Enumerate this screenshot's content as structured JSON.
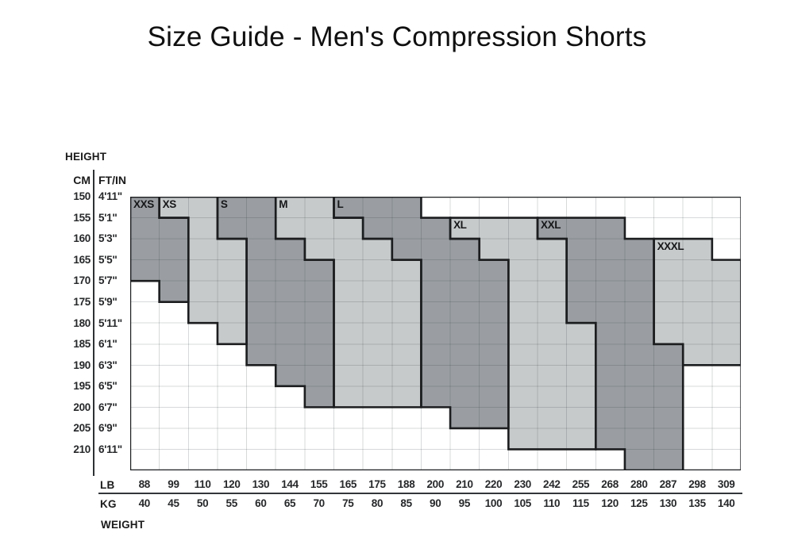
{
  "title": "Size Guide - Men's Compression Shorts",
  "axes": {
    "height_label": "HEIGHT",
    "weight_label": "WEIGHT",
    "cm_header": "CM",
    "ftin_header": "FT/IN",
    "lb_label": "LB",
    "kg_label": "KG"
  },
  "colors": {
    "fill_dark": "#9a9ea2",
    "fill_light": "#c7cacb",
    "region_border": "#1b1d1f",
    "gridline": "rgba(35,42,48,0.18)",
    "outer_border": "#1b1d1f",
    "background": "#ffffff"
  },
  "chart_data": {
    "type": "heatmap",
    "title": "Size Guide - Men's Compression Shorts",
    "xlabel": "WEIGHT",
    "ylabel": "HEIGHT",
    "x_ticks_lb": [
      88,
      99,
      110,
      120,
      130,
      144,
      155,
      165,
      175,
      188,
      200,
      210,
      220,
      230,
      242,
      255,
      268,
      280,
      287,
      298,
      309
    ],
    "x_ticks_kg": [
      40,
      45,
      50,
      55,
      60,
      65,
      70,
      75,
      80,
      85,
      90,
      95,
      100,
      105,
      110,
      115,
      120,
      125,
      130,
      135,
      140
    ],
    "y_ticks_cm": [
      150,
      155,
      160,
      165,
      170,
      175,
      180,
      185,
      190,
      195,
      200,
      205,
      210
    ],
    "y_ticks_ftin": [
      "4'11\"",
      "5'1\"",
      "5'3\"",
      "5'5\"",
      "5'7\"",
      "5'9\"",
      "5'11\"",
      "6'1\"",
      "6'3\"",
      "6'5\"",
      "6'7\"",
      "6'9\"",
      "6'11\""
    ],
    "grid": {
      "cols": 21,
      "rows": 13
    },
    "legend_position": "in-chart-labels",
    "sizes": [
      {
        "label": "XXS",
        "shade": "dark",
        "label_cell": [
          0,
          0
        ],
        "row_spans": {
          "0": [
            0,
            0
          ],
          "1": [
            0,
            1
          ],
          "2": [
            0,
            1
          ],
          "3": [
            0,
            1
          ],
          "4": [
            1,
            1
          ]
        },
        "polygon": [
          [
            0,
            0
          ],
          [
            1,
            0
          ],
          [
            1,
            1
          ],
          [
            2,
            1
          ],
          [
            2,
            5
          ],
          [
            1,
            5
          ],
          [
            1,
            4
          ],
          [
            0,
            4
          ]
        ]
      },
      {
        "label": "XS",
        "shade": "light",
        "label_cell": [
          1,
          0
        ],
        "row_spans": {
          "0": [
            1,
            2
          ],
          "1": [
            2,
            2
          ],
          "2": [
            2,
            3
          ],
          "3": [
            2,
            3
          ],
          "4": [
            2,
            3
          ],
          "5": [
            2,
            3
          ],
          "6": [
            3,
            3
          ]
        },
        "polygon": [
          [
            1,
            0
          ],
          [
            3,
            0
          ],
          [
            3,
            2
          ],
          [
            4,
            2
          ],
          [
            4,
            7
          ],
          [
            3,
            7
          ],
          [
            3,
            6
          ],
          [
            2,
            6
          ],
          [
            2,
            1
          ],
          [
            1,
            1
          ]
        ]
      },
      {
        "label": "S",
        "shade": "dark",
        "label_cell": [
          3,
          0
        ],
        "row_spans": {
          "0": [
            3,
            4
          ],
          "1": [
            3,
            4
          ],
          "2": [
            4,
            5
          ],
          "3": [
            4,
            6
          ],
          "4": [
            4,
            6
          ],
          "5": [
            4,
            6
          ],
          "6": [
            4,
            6
          ],
          "7": [
            4,
            6
          ],
          "8": [
            5,
            6
          ],
          "9": [
            6,
            6
          ]
        },
        "polygon": [
          [
            3,
            0
          ],
          [
            5,
            0
          ],
          [
            5,
            2
          ],
          [
            6,
            2
          ],
          [
            6,
            3
          ],
          [
            7,
            3
          ],
          [
            7,
            10
          ],
          [
            6,
            10
          ],
          [
            6,
            9
          ],
          [
            5,
            9
          ],
          [
            5,
            8
          ],
          [
            4,
            8
          ],
          [
            4,
            2
          ],
          [
            3,
            2
          ]
        ]
      },
      {
        "label": "M",
        "shade": "light",
        "label_cell": [
          5,
          0
        ],
        "row_spans": {
          "0": [
            5,
            6
          ],
          "1": [
            5,
            7
          ],
          "2": [
            6,
            8
          ],
          "3": [
            7,
            9
          ],
          "4": [
            7,
            9
          ],
          "5": [
            7,
            9
          ],
          "6": [
            7,
            9
          ],
          "7": [
            7,
            9
          ],
          "8": [
            7,
            9
          ],
          "9": [
            7,
            9
          ]
        },
        "polygon": [
          [
            5,
            0
          ],
          [
            7,
            0
          ],
          [
            7,
            1
          ],
          [
            8,
            1
          ],
          [
            8,
            2
          ],
          [
            9,
            2
          ],
          [
            9,
            3
          ],
          [
            10,
            3
          ],
          [
            10,
            10
          ],
          [
            7,
            10
          ],
          [
            7,
            3
          ],
          [
            6,
            3
          ],
          [
            6,
            2
          ],
          [
            5,
            2
          ]
        ]
      },
      {
        "label": "L",
        "shade": "dark",
        "label_cell": [
          7,
          0
        ],
        "row_spans": {
          "0": [
            7,
            9
          ],
          "1": [
            8,
            10
          ],
          "2": [
            9,
            11
          ],
          "3": [
            10,
            12
          ],
          "4": [
            10,
            12
          ],
          "5": [
            10,
            12
          ],
          "6": [
            10,
            12
          ],
          "7": [
            10,
            12
          ],
          "8": [
            10,
            12
          ],
          "9": [
            10,
            12
          ],
          "10": [
            11,
            12
          ]
        },
        "polygon": [
          [
            7,
            0
          ],
          [
            10,
            0
          ],
          [
            10,
            1
          ],
          [
            11,
            1
          ],
          [
            11,
            2
          ],
          [
            12,
            2
          ],
          [
            12,
            3
          ],
          [
            13,
            3
          ],
          [
            13,
            11
          ],
          [
            11,
            11
          ],
          [
            11,
            10
          ],
          [
            10,
            10
          ],
          [
            10,
            3
          ],
          [
            9,
            3
          ],
          [
            9,
            2
          ],
          [
            8,
            2
          ],
          [
            8,
            1
          ],
          [
            7,
            1
          ]
        ]
      },
      {
        "label": "XL",
        "shade": "light",
        "label_cell": [
          11,
          1
        ],
        "row_spans": {
          "1": [
            11,
            13
          ],
          "2": [
            12,
            14
          ],
          "3": [
            13,
            14
          ],
          "4": [
            13,
            14
          ],
          "5": [
            13,
            14
          ],
          "6": [
            13,
            15
          ],
          "7": [
            13,
            15
          ],
          "8": [
            13,
            15
          ],
          "9": [
            13,
            15
          ],
          "10": [
            13,
            15
          ],
          "11": [
            13,
            15
          ]
        },
        "polygon": [
          [
            11,
            1
          ],
          [
            14,
            1
          ],
          [
            14,
            2
          ],
          [
            15,
            2
          ],
          [
            15,
            6
          ],
          [
            16,
            6
          ],
          [
            16,
            12
          ],
          [
            13,
            12
          ],
          [
            13,
            3
          ],
          [
            12,
            3
          ],
          [
            12,
            2
          ],
          [
            11,
            2
          ]
        ]
      },
      {
        "label": "XXL",
        "shade": "dark",
        "label_cell": [
          14,
          1
        ],
        "row_spans": {
          "1": [
            14,
            16
          ],
          "2": [
            15,
            17
          ],
          "3": [
            15,
            17
          ],
          "4": [
            15,
            17
          ],
          "5": [
            15,
            17
          ],
          "6": [
            16,
            17
          ],
          "7": [
            16,
            18
          ],
          "8": [
            16,
            18
          ],
          "9": [
            16,
            18
          ],
          "10": [
            16,
            18
          ],
          "11": [
            16,
            18
          ],
          "12": [
            17,
            18
          ]
        },
        "polygon": [
          [
            14,
            1
          ],
          [
            17,
            1
          ],
          [
            17,
            2
          ],
          [
            18,
            2
          ],
          [
            18,
            7
          ],
          [
            19,
            7
          ],
          [
            19,
            13
          ],
          [
            17,
            13
          ],
          [
            17,
            12
          ],
          [
            16,
            12
          ],
          [
            16,
            6
          ],
          [
            15,
            6
          ],
          [
            15,
            2
          ],
          [
            14,
            2
          ]
        ]
      },
      {
        "label": "XXXL",
        "shade": "light",
        "label_cell": [
          18,
          2
        ],
        "row_spans": {
          "2": [
            18,
            19
          ],
          "3": [
            18,
            20
          ],
          "4": [
            18,
            20
          ],
          "5": [
            18,
            20
          ],
          "6": [
            18,
            20
          ],
          "7": [
            19,
            20
          ]
        },
        "polygon": [
          [
            18,
            2
          ],
          [
            20,
            2
          ],
          [
            20,
            3
          ],
          [
            21,
            3
          ],
          [
            21,
            8
          ],
          [
            19,
            8
          ],
          [
            19,
            7
          ],
          [
            18,
            7
          ]
        ]
      }
    ]
  }
}
